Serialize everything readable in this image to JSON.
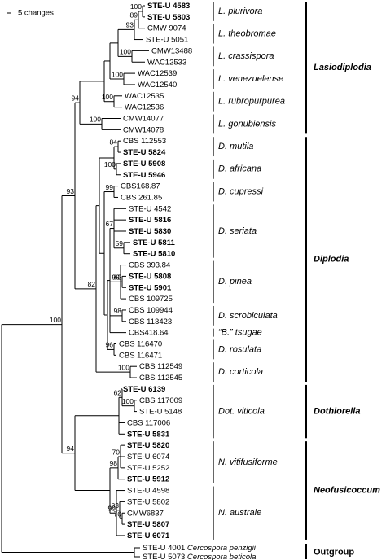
{
  "scale": "5 changes",
  "taxa": [
    {
      "label": "STE-U 4583",
      "bold": true
    },
    {
      "label": "STE-U 5803",
      "bold": true
    },
    {
      "label": "CMW 9074",
      "bold": false
    },
    {
      "label": "STE-U 5051",
      "bold": false
    },
    {
      "label": "CMW13488",
      "bold": false
    },
    {
      "label": "WAC12533",
      "bold": false
    },
    {
      "label": "WAC12539",
      "bold": false
    },
    {
      "label": "WAC12540",
      "bold": false
    },
    {
      "label": "WAC12535",
      "bold": false
    },
    {
      "label": "WAC12536",
      "bold": false
    },
    {
      "label": "CMW14077",
      "bold": false
    },
    {
      "label": "CMW14078",
      "bold": false
    },
    {
      "label": "CBS 112553",
      "bold": false
    },
    {
      "label": "STE-U 5824",
      "bold": true
    },
    {
      "label": "STE-U 5908",
      "bold": true
    },
    {
      "label": "STE-U 5946",
      "bold": true
    },
    {
      "label": "CBS168.87",
      "bold": false
    },
    {
      "label": "CBS 261.85",
      "bold": false
    },
    {
      "label": "STE-U 4542",
      "bold": false
    },
    {
      "label": "STE-U 5816",
      "bold": true
    },
    {
      "label": "STE-U 5830",
      "bold": true
    },
    {
      "label": "STE-U 5811",
      "bold": true
    },
    {
      "label": "STE-U 5810",
      "bold": true
    },
    {
      "label": "CBS 393.84",
      "bold": false
    },
    {
      "label": "STE-U 5808",
      "bold": true
    },
    {
      "label": "STE-U 5901",
      "bold": true
    },
    {
      "label": "CBS 109725",
      "bold": false
    },
    {
      "label": "CBS 109944",
      "bold": false
    },
    {
      "label": "CBS 113423",
      "bold": false
    },
    {
      "label": "CBS418.64",
      "bold": false
    },
    {
      "label": "CBS 116470",
      "bold": false
    },
    {
      "label": "CBS 116471",
      "bold": false
    },
    {
      "label": "CBS 112549",
      "bold": false
    },
    {
      "label": "CBS 112545",
      "bold": false
    },
    {
      "label": "STE-U 6139",
      "bold": true
    },
    {
      "label": "CBS 117009",
      "bold": false
    },
    {
      "label": "STE-U 5148",
      "bold": false
    },
    {
      "label": "CBS 117006",
      "bold": false
    },
    {
      "label": "STE-U 5831",
      "bold": true
    },
    {
      "label": "STE-U 5820",
      "bold": true
    },
    {
      "label": "STE-U 6074",
      "bold": false
    },
    {
      "label": "STE-U 5252",
      "bold": false
    },
    {
      "label": "STE-U 5912",
      "bold": true
    },
    {
      "label": "STE-U 4598",
      "bold": false
    },
    {
      "label": "STE-U 5802",
      "bold": false
    },
    {
      "label": "CMW6837",
      "bold": false
    },
    {
      "label": "STE-U 5807",
      "bold": true
    },
    {
      "label": "STE-U 6071",
      "bold": true
    },
    {
      "label": "STE-U 4001",
      "bold": false,
      "species": "Cercospora penzigii"
    },
    {
      "label": "STE-U 5073",
      "bold": false,
      "species": "Cercospora beticola"
    }
  ],
  "support": [
    100,
    89,
    93,
    100,
    100,
    100,
    100,
    94,
    84,
    100,
    99,
    67,
    59,
    98,
    62,
    98,
    96,
    100,
    82,
    93,
    62,
    100,
    70,
    98,
    76,
    83,
    99,
    94,
    100
  ],
  "species_groups": [
    "L. plurivora",
    "L. theobromae",
    "L. crassispora",
    "L. venezuelense",
    "L. rubropurpurea",
    "L. gonubiensis",
    "D. mutila",
    "D. africana",
    "D. cupressi",
    "D. seriata",
    "D. pinea",
    "D. scrobiculata",
    "“B.” tsugae",
    "D. rosulata",
    "D. corticola",
    "Dot. viticola",
    "N. vitifusiforme",
    "N. australe"
  ],
  "genera": [
    "Lasiodiplodia",
    "Diplodia",
    "Dothiorella",
    "Neofusicoccum",
    "Outgroup"
  ]
}
